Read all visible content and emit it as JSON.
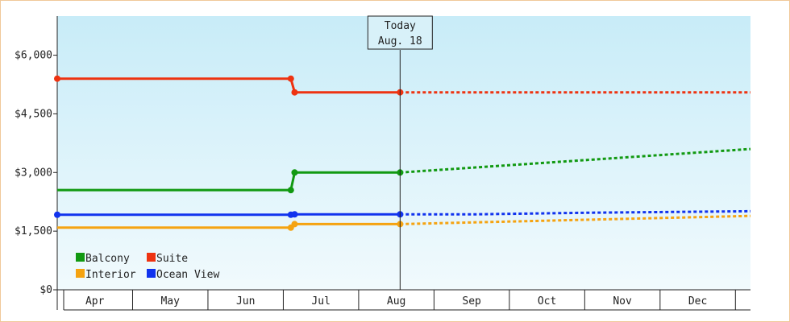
{
  "chart_data": {
    "type": "line",
    "step": true,
    "y_ticks": [
      "$0",
      "$1,500",
      "$3,000",
      "$4,500",
      "$6,000"
    ],
    "y_tick_values": [
      0,
      1500,
      3000,
      4500,
      6000
    ],
    "ylim": [
      0,
      7000
    ],
    "x_ticks": [
      "Apr",
      "May",
      "Jun",
      "Jul",
      "Aug",
      "Sep",
      "Oct",
      "Nov",
      "Dec"
    ],
    "xlim_months": [
      3.0,
      12.2
    ],
    "today": {
      "label": "Today",
      "date": "Aug. 18",
      "x": 7.55
    },
    "grid": false,
    "legend": {
      "position": "bottom-left",
      "columns": 2
    },
    "series": [
      {
        "name": "Balcony",
        "color": "#119911",
        "actual": [
          [
            3.0,
            2550
          ],
          [
            6.1,
            2550
          ],
          [
            6.1,
            2550
          ],
          [
            6.15,
            3000
          ],
          [
            7.55,
            3000
          ]
        ],
        "markers": [
          [
            6.1,
            2550
          ],
          [
            6.15,
            3000
          ],
          [
            7.55,
            3000
          ]
        ],
        "forecast": [
          [
            7.55,
            3000
          ],
          [
            12.2,
            3600
          ]
        ]
      },
      {
        "name": "Suite",
        "color": "#ee3311",
        "actual": [
          [
            3.0,
            5400
          ],
          [
            6.1,
            5400
          ],
          [
            6.15,
            5050
          ],
          [
            7.55,
            5050
          ]
        ],
        "markers": [
          [
            3.0,
            5400
          ],
          [
            6.1,
            5400
          ],
          [
            6.15,
            5050
          ],
          [
            7.55,
            5050
          ]
        ],
        "forecast": [
          [
            7.55,
            5050
          ],
          [
            12.2,
            5050
          ]
        ]
      },
      {
        "name": "Interior",
        "color": "#f5a311",
        "actual": [
          [
            3.0,
            1590
          ],
          [
            6.1,
            1590
          ],
          [
            6.15,
            1680
          ],
          [
            7.55,
            1680
          ]
        ],
        "markers": [
          [
            6.1,
            1590
          ],
          [
            6.15,
            1680
          ],
          [
            7.55,
            1680
          ]
        ],
        "forecast": [
          [
            7.55,
            1680
          ],
          [
            12.2,
            1890
          ]
        ]
      },
      {
        "name": "Ocean View",
        "color": "#1133ee",
        "actual": [
          [
            3.0,
            1920
          ],
          [
            6.1,
            1920
          ],
          [
            6.15,
            1930
          ],
          [
            7.55,
            1930
          ]
        ],
        "markers": [
          [
            3.0,
            1920
          ],
          [
            6.1,
            1920
          ],
          [
            6.15,
            1930
          ],
          [
            7.55,
            1930
          ]
        ],
        "forecast": [
          [
            7.55,
            1930
          ],
          [
            8.5,
            1930
          ],
          [
            10.0,
            1970
          ],
          [
            12.2,
            2010
          ]
        ]
      }
    ]
  }
}
